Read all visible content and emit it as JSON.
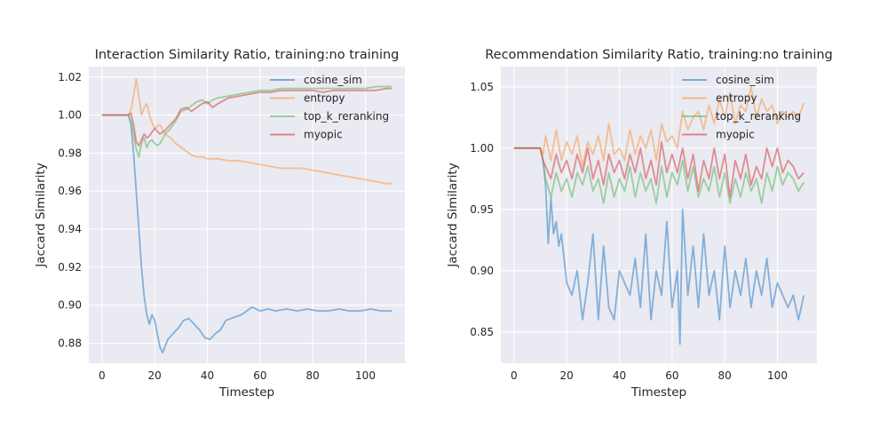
{
  "chart_data": [
    {
      "type": "line",
      "title": "Interaction Similarity Ratio, training:no training",
      "xlabel": "Timestep",
      "ylabel": "Jaccard Similarity",
      "xlim": [
        -5,
        115
      ],
      "ylim": [
        0.8695,
        1.0255
      ],
      "xticks": [
        0,
        20,
        40,
        60,
        80,
        100
      ],
      "yticks": [
        0.88,
        0.9,
        0.92,
        0.94,
        0.96,
        0.98,
        1.0,
        1.02
      ],
      "ytick_labels": [
        "0.88",
        "0.90",
        "0.92",
        "0.94",
        "0.96",
        "0.98",
        "1.00",
        "1.02"
      ],
      "grid": true,
      "legend_position": "top-right",
      "series": [
        {
          "name": "cosine_sim",
          "color": "#4c8fc9",
          "x": [
            0,
            10,
            11,
            12,
            13,
            14,
            15,
            16,
            17,
            18,
            19,
            20,
            22,
            23,
            25,
            27,
            29,
            31,
            33,
            35,
            37,
            39,
            41,
            43,
            45,
            47,
            49,
            51,
            53,
            55,
            57,
            60,
            63,
            66,
            70,
            74,
            78,
            82,
            86,
            90,
            94,
            98,
            102,
            106,
            110
          ],
          "y": [
            1.0,
            1.0,
            0.995,
            0.98,
            0.96,
            0.94,
            0.92,
            0.905,
            0.895,
            0.89,
            0.895,
            0.892,
            0.878,
            0.875,
            0.882,
            0.885,
            0.888,
            0.892,
            0.893,
            0.89,
            0.887,
            0.883,
            0.882,
            0.885,
            0.887,
            0.892,
            0.893,
            0.894,
            0.895,
            0.897,
            0.899,
            0.897,
            0.898,
            0.897,
            0.898,
            0.897,
            0.898,
            0.897,
            0.897,
            0.898,
            0.897,
            0.897,
            0.898,
            0.897,
            0.897
          ]
        },
        {
          "name": "entropy",
          "color": "#f6a55d",
          "x": [
            0,
            10,
            11,
            12,
            13,
            14,
            15,
            16,
            17,
            18,
            19,
            20,
            22,
            24,
            26,
            28,
            30,
            32,
            34,
            36,
            38,
            40,
            44,
            48,
            52,
            56,
            60,
            64,
            68,
            72,
            76,
            80,
            84,
            88,
            92,
            96,
            100,
            104,
            108,
            110
          ],
          "y": [
            1.0,
            1.0,
            1.003,
            1.01,
            1.019,
            1.01,
            1.0,
            1.004,
            1.006,
            1.0,
            0.996,
            0.993,
            0.995,
            0.99,
            0.988,
            0.985,
            0.983,
            0.981,
            0.979,
            0.978,
            0.978,
            0.977,
            0.977,
            0.976,
            0.976,
            0.975,
            0.974,
            0.973,
            0.972,
            0.972,
            0.972,
            0.971,
            0.97,
            0.969,
            0.968,
            0.967,
            0.966,
            0.965,
            0.964,
            0.964
          ]
        },
        {
          "name": "top_k_reranking",
          "color": "#6fbf6f",
          "x": [
            0,
            10,
            11,
            12,
            13,
            14,
            15,
            16,
            17,
            18,
            19,
            20,
            21,
            22,
            24,
            26,
            28,
            30,
            32,
            34,
            36,
            38,
            40,
            42,
            44,
            48,
            52,
            56,
            60,
            64,
            68,
            72,
            76,
            80,
            84,
            88,
            92,
            96,
            100,
            104,
            108,
            110
          ],
          "y": [
            1.0,
            1.0,
            0.997,
            0.99,
            0.982,
            0.978,
            0.985,
            0.988,
            0.983,
            0.986,
            0.987,
            0.985,
            0.984,
            0.985,
            0.99,
            0.993,
            0.997,
            1.002,
            1.003,
            1.005,
            1.007,
            1.008,
            1.006,
            1.008,
            1.009,
            1.01,
            1.011,
            1.012,
            1.013,
            1.013,
            1.014,
            1.014,
            1.014,
            1.014,
            1.014,
            1.014,
            1.014,
            1.014,
            1.014,
            1.015,
            1.015,
            1.015
          ]
        },
        {
          "name": "myopic",
          "color": "#d8595a",
          "x": [
            0,
            10,
            11,
            12,
            13,
            14,
            15,
            16,
            17,
            18,
            19,
            20,
            22,
            24,
            26,
            28,
            30,
            32,
            34,
            36,
            38,
            40,
            42,
            44,
            48,
            52,
            56,
            60,
            64,
            68,
            72,
            76,
            80,
            84,
            88,
            92,
            96,
            100,
            104,
            108,
            110
          ],
          "y": [
            1.0,
            1.0,
            1.001,
            0.995,
            0.986,
            0.984,
            0.987,
            0.99,
            0.988,
            0.989,
            0.991,
            0.993,
            0.99,
            0.992,
            0.995,
            0.998,
            1.003,
            1.004,
            1.002,
            1.004,
            1.006,
            1.007,
            1.004,
            1.006,
            1.009,
            1.01,
            1.011,
            1.012,
            1.012,
            1.013,
            1.013,
            1.013,
            1.013,
            1.012,
            1.013,
            1.013,
            1.013,
            1.013,
            1.013,
            1.014,
            1.014
          ]
        }
      ]
    },
    {
      "type": "line",
      "title": "Recommendation Similarity Ratio, training:no training",
      "xlabel": "Timestep",
      "ylabel": "Jaccard Similarity",
      "xlim": [
        -5,
        115
      ],
      "ylim": [
        0.8245,
        1.0665
      ],
      "xticks": [
        0,
        20,
        40,
        60,
        80,
        100
      ],
      "yticks": [
        0.85,
        0.9,
        0.95,
        1.0,
        1.05
      ],
      "ytick_labels": [
        "0.85",
        "0.90",
        "0.95",
        "1.00",
        "1.05"
      ],
      "grid": true,
      "legend_position": "top-right",
      "series": [
        {
          "name": "cosine_sim",
          "color": "#4c8fc9",
          "x": [
            0,
            10,
            11,
            12,
            13,
            14,
            15,
            16,
            17,
            18,
            19,
            20,
            22,
            24,
            26,
            28,
            30,
            32,
            34,
            36,
            38,
            40,
            42,
            44,
            46,
            48,
            50,
            52,
            54,
            56,
            58,
            60,
            62,
            63,
            64,
            66,
            68,
            70,
            72,
            74,
            76,
            78,
            80,
            82,
            84,
            86,
            88,
            90,
            92,
            94,
            96,
            98,
            100,
            102,
            104,
            106,
            108,
            110
          ],
          "y": [
            1.0,
            1.0,
            0.99,
            0.97,
            0.922,
            0.96,
            0.93,
            0.94,
            0.92,
            0.93,
            0.91,
            0.89,
            0.88,
            0.9,
            0.86,
            0.89,
            0.93,
            0.86,
            0.92,
            0.87,
            0.86,
            0.9,
            0.89,
            0.88,
            0.91,
            0.87,
            0.93,
            0.86,
            0.9,
            0.88,
            0.94,
            0.87,
            0.9,
            0.84,
            0.95,
            0.88,
            0.92,
            0.87,
            0.93,
            0.88,
            0.9,
            0.86,
            0.92,
            0.87,
            0.9,
            0.88,
            0.91,
            0.87,
            0.9,
            0.88,
            0.91,
            0.87,
            0.89,
            0.88,
            0.87,
            0.88,
            0.86,
            0.88
          ]
        },
        {
          "name": "entropy",
          "color": "#f6a55d",
          "x": [
            0,
            10,
            11,
            12,
            14,
            16,
            18,
            20,
            22,
            24,
            26,
            28,
            30,
            32,
            34,
            36,
            38,
            40,
            42,
            44,
            46,
            48,
            50,
            52,
            54,
            56,
            58,
            60,
            62,
            64,
            66,
            68,
            70,
            72,
            74,
            76,
            78,
            80,
            82,
            84,
            86,
            88,
            90,
            92,
            94,
            96,
            98,
            100,
            102,
            104,
            106,
            108,
            110
          ],
          "y": [
            1.0,
            1.0,
            0.995,
            1.01,
            0.99,
            1.015,
            0.99,
            1.005,
            0.995,
            1.01,
            0.985,
            1.005,
            0.995,
            1.01,
            0.99,
            1.02,
            0.995,
            1.0,
            0.99,
            1.015,
            0.995,
            1.01,
            1.0,
            1.015,
            0.99,
            1.02,
            1.005,
            1.01,
            1.0,
            1.03,
            1.015,
            1.025,
            1.03,
            1.015,
            1.035,
            1.02,
            1.04,
            1.025,
            1.045,
            1.02,
            1.035,
            1.03,
            1.05,
            1.025,
            1.04,
            1.03,
            1.035,
            1.02,
            1.03,
            1.025,
            1.03,
            1.025,
            1.037
          ]
        },
        {
          "name": "top_k_reranking",
          "color": "#6fbf6f",
          "x": [
            0,
            10,
            11,
            12,
            14,
            16,
            18,
            20,
            22,
            24,
            26,
            28,
            30,
            32,
            34,
            36,
            38,
            40,
            42,
            44,
            46,
            48,
            50,
            52,
            54,
            56,
            58,
            60,
            62,
            64,
            66,
            68,
            70,
            72,
            74,
            76,
            78,
            80,
            82,
            84,
            86,
            88,
            90,
            92,
            94,
            96,
            98,
            100,
            102,
            104,
            106,
            108,
            110
          ],
          "y": [
            1.0,
            1.0,
            0.99,
            0.975,
            0.96,
            0.98,
            0.965,
            0.975,
            0.96,
            0.98,
            0.97,
            0.985,
            0.965,
            0.975,
            0.955,
            0.98,
            0.96,
            0.975,
            0.965,
            0.985,
            0.96,
            0.98,
            0.965,
            0.975,
            0.955,
            0.985,
            0.96,
            0.98,
            0.97,
            0.99,
            0.965,
            0.985,
            0.96,
            0.975,
            0.965,
            0.985,
            0.96,
            0.98,
            0.955,
            0.975,
            0.96,
            0.98,
            0.965,
            0.975,
            0.955,
            0.98,
            0.965,
            0.985,
            0.97,
            0.98,
            0.975,
            0.965,
            0.972
          ]
        },
        {
          "name": "myopic",
          "color": "#d8595a",
          "x": [
            0,
            10,
            11,
            12,
            14,
            16,
            18,
            20,
            22,
            24,
            26,
            28,
            30,
            32,
            34,
            36,
            38,
            40,
            42,
            44,
            46,
            48,
            50,
            52,
            54,
            56,
            58,
            60,
            62,
            64,
            66,
            68,
            70,
            72,
            74,
            76,
            78,
            80,
            82,
            84,
            86,
            88,
            90,
            92,
            94,
            96,
            98,
            100,
            102,
            104,
            106,
            108,
            110
          ],
          "y": [
            1.0,
            1.0,
            0.99,
            0.985,
            0.975,
            0.995,
            0.98,
            0.99,
            0.975,
            0.995,
            0.98,
            1.0,
            0.975,
            0.99,
            0.97,
            0.995,
            0.98,
            0.99,
            0.975,
            0.995,
            0.98,
            1.0,
            0.975,
            0.99,
            0.97,
            1.005,
            0.98,
            0.995,
            0.98,
            1.0,
            0.975,
            0.995,
            0.965,
            0.99,
            0.975,
            1.0,
            0.975,
            0.995,
            0.96,
            0.99,
            0.975,
            0.995,
            0.97,
            0.985,
            0.975,
            1.0,
            0.985,
            1.0,
            0.98,
            0.99,
            0.985,
            0.975,
            0.98
          ]
        }
      ]
    }
  ]
}
